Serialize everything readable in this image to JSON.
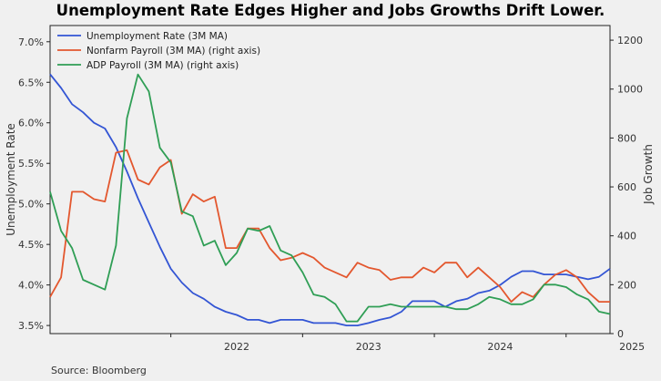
{
  "chart_data": {
    "type": "line",
    "title": "Unemployment Rate Edges Higher and Jobs Growths Drift Lower.",
    "ylabel": "Unemployment Rate",
    "y2label": "Job Growth",
    "source": "Source: Bloomberg",
    "x_ticks": [
      "2022",
      "2023",
      "2024",
      "2025"
    ],
    "y_ticks": [
      "3.5%",
      "4.0%",
      "4.5%",
      "5.0%",
      "5.5%",
      "6.0%",
      "6.5%",
      "7.0%"
    ],
    "y2_ticks": [
      "0",
      "200",
      "400",
      "600",
      "800",
      "1000",
      "1200"
    ],
    "ylim": [
      3.4,
      7.2
    ],
    "y2lim": [
      0,
      1260
    ],
    "xlim": [
      "2021-02",
      "2025-05"
    ],
    "legend_position": "top-left",
    "grid": false,
    "series": [
      {
        "name": "Unemployment Rate (3M MA)",
        "axis": "left",
        "color": "#3355d4",
        "x": [
          "2021-02",
          "2021-03",
          "2021-04",
          "2021-05",
          "2021-06",
          "2021-07",
          "2021-08",
          "2021-09",
          "2021-10",
          "2021-11",
          "2021-12",
          "2022-01",
          "2022-02",
          "2022-03",
          "2022-04",
          "2022-05",
          "2022-06",
          "2022-07",
          "2022-08",
          "2022-09",
          "2022-10",
          "2022-11",
          "2022-12",
          "2023-01",
          "2023-02",
          "2023-03",
          "2023-04",
          "2023-05",
          "2023-06",
          "2023-07",
          "2023-08",
          "2023-09",
          "2023-10",
          "2023-11",
          "2023-12",
          "2024-01",
          "2024-02",
          "2024-03",
          "2024-04",
          "2024-05",
          "2024-06",
          "2024-07",
          "2024-08",
          "2024-09",
          "2024-10",
          "2024-11",
          "2024-12",
          "2025-01",
          "2025-02",
          "2025-03",
          "2025-04",
          "2025-05"
        ],
        "values": [
          6.6,
          6.43,
          6.23,
          6.13,
          6.0,
          5.93,
          5.7,
          5.4,
          5.07,
          4.77,
          4.47,
          4.2,
          4.03,
          3.9,
          3.83,
          3.73,
          3.67,
          3.63,
          3.57,
          3.57,
          3.53,
          3.57,
          3.57,
          3.57,
          3.53,
          3.53,
          3.53,
          3.5,
          3.5,
          3.53,
          3.57,
          3.6,
          3.67,
          3.8,
          3.8,
          3.8,
          3.73,
          3.8,
          3.83,
          3.9,
          3.93,
          4.0,
          4.1,
          4.17,
          4.17,
          4.13,
          4.13,
          4.13,
          4.1,
          4.07,
          4.1,
          4.2
        ]
      },
      {
        "name": "Nonfarm Payroll (3M MA) (right axis)",
        "axis": "right",
        "color": "#e3572e",
        "x": [
          "2021-02",
          "2021-03",
          "2021-04",
          "2021-05",
          "2021-06",
          "2021-07",
          "2021-08",
          "2021-09",
          "2021-10",
          "2021-11",
          "2021-12",
          "2022-01",
          "2022-02",
          "2022-03",
          "2022-04",
          "2022-05",
          "2022-06",
          "2022-07",
          "2022-08",
          "2022-09",
          "2022-10",
          "2022-11",
          "2022-12",
          "2023-01",
          "2023-02",
          "2023-03",
          "2023-04",
          "2023-05",
          "2023-06",
          "2023-07",
          "2023-08",
          "2023-09",
          "2023-10",
          "2023-11",
          "2023-12",
          "2024-01",
          "2024-02",
          "2024-03",
          "2024-04",
          "2024-05",
          "2024-06",
          "2024-07",
          "2024-08",
          "2024-09",
          "2024-10",
          "2024-11",
          "2024-12",
          "2025-01",
          "2025-02",
          "2025-03",
          "2025-04",
          "2025-05"
        ],
        "values": [
          150,
          230,
          580,
          580,
          550,
          540,
          740,
          750,
          630,
          610,
          680,
          710,
          490,
          570,
          540,
          560,
          350,
          350,
          430,
          430,
          350,
          300,
          310,
          330,
          310,
          270,
          250,
          230,
          290,
          270,
          260,
          220,
          230,
          230,
          270,
          250,
          290,
          290,
          230,
          270,
          230,
          190,
          130,
          170,
          150,
          200,
          240,
          260,
          230,
          170,
          130,
          130
        ]
      },
      {
        "name": "ADP Payroll (3M MA) (right axis)",
        "axis": "right",
        "color": "#2f9e55",
        "x": [
          "2021-02",
          "2021-03",
          "2021-04",
          "2021-05",
          "2021-06",
          "2021-07",
          "2021-08",
          "2021-09",
          "2021-10",
          "2021-11",
          "2021-12",
          "2022-01",
          "2022-02",
          "2022-03",
          "2022-04",
          "2022-05",
          "2022-06",
          "2022-07",
          "2022-08",
          "2022-09",
          "2022-10",
          "2022-11",
          "2022-12",
          "2023-01",
          "2023-02",
          "2023-03",
          "2023-04",
          "2023-05",
          "2023-06",
          "2023-07",
          "2023-08",
          "2023-09",
          "2023-10",
          "2023-11",
          "2023-12",
          "2024-01",
          "2024-02",
          "2024-03",
          "2024-04",
          "2024-05",
          "2024-06",
          "2024-07",
          "2024-08",
          "2024-09",
          "2024-10",
          "2024-11",
          "2024-12",
          "2025-01",
          "2025-02",
          "2025-03",
          "2025-04",
          "2025-05"
        ],
        "values": [
          580,
          420,
          350,
          220,
          200,
          180,
          360,
          880,
          1060,
          990,
          760,
          700,
          500,
          480,
          360,
          380,
          280,
          330,
          430,
          420,
          440,
          340,
          320,
          250,
          160,
          150,
          120,
          50,
          50,
          110,
          110,
          120,
          110,
          110,
          110,
          110,
          110,
          100,
          100,
          120,
          150,
          140,
          120,
          120,
          140,
          200,
          200,
          190,
          160,
          140,
          90,
          80
        ]
      }
    ]
  }
}
